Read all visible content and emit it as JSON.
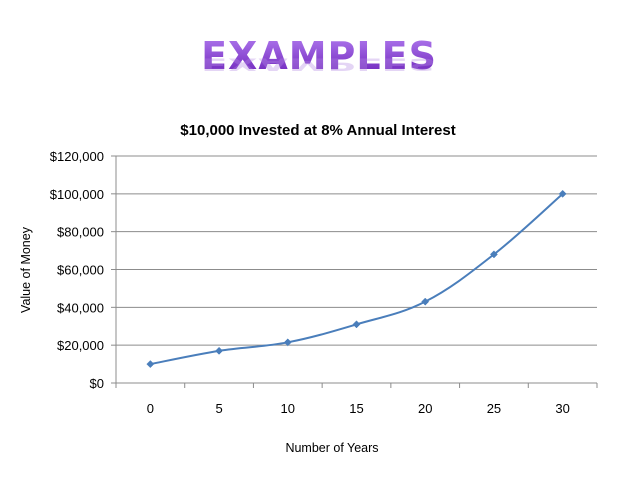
{
  "slide": {
    "title": "EXAMPLES"
  },
  "chart_data": {
    "type": "line",
    "title": "$10,000 Invested at 8% Annual Interest",
    "xlabel": "Number of Years",
    "ylabel": "Value of Money",
    "x": [
      0,
      5,
      10,
      15,
      20,
      25,
      30
    ],
    "x_tick_labels": [
      "0",
      "5",
      "10",
      "15",
      "20",
      "25",
      "30"
    ],
    "y_tick_labels": [
      "$0",
      "$20,000",
      "$40,000",
      "$60,000",
      "$80,000",
      "$100,000",
      "$120,000"
    ],
    "ylim": [
      0,
      120000
    ],
    "y_ticks": [
      0,
      20000,
      40000,
      60000,
      80000,
      100000,
      120000
    ],
    "series": [
      {
        "values": [
          10000,
          17000,
          21500,
          31000,
          43000,
          68000,
          100000
        ],
        "color": "#4a7ebb",
        "marker": "diamond"
      }
    ],
    "grid": "horizontal",
    "legend": "none"
  }
}
